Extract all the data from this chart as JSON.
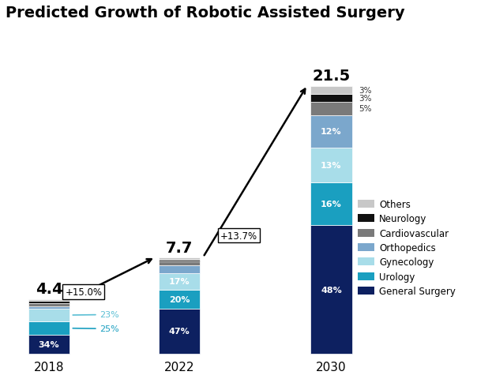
{
  "title": "Predicted Growth of Robotic Assisted Surgery",
  "years": [
    "2018",
    "2022",
    "2030"
  ],
  "totals": [
    4.4,
    7.7,
    21.5
  ],
  "bar_width": 0.38,
  "bar_positions": [
    1.0,
    2.2,
    3.6
  ],
  "segments": {
    "General Surgery": {
      "color": "#0d2060",
      "pcts": [
        34,
        47,
        48
      ]
    },
    "Urology": {
      "color": "#1a9fc0",
      "pcts": [
        25,
        20,
        16
      ]
    },
    "Gynecology": {
      "color": "#a8dde9",
      "pcts": [
        23,
        17,
        13
      ]
    },
    "Orthopedics": {
      "color": "#7ba7cc",
      "pcts": [
        5,
        8,
        12
      ]
    },
    "Cardiovascular": {
      "color": "#7a7a7a",
      "pcts": [
        5,
        4,
        5
      ]
    },
    "Neurology": {
      "color": "#111111",
      "pcts": [
        4,
        2,
        3
      ]
    },
    "Others": {
      "color": "#c8c8c8",
      "pcts": [
        4,
        2,
        3
      ]
    }
  },
  "segment_order": [
    "General Surgery",
    "Urology",
    "Gynecology",
    "Orthopedics",
    "Cardiovascular",
    "Neurology",
    "Others"
  ],
  "show_inside_labels": {
    "2018": [
      "General Surgery"
    ],
    "2022": [
      "General Surgery",
      "Urology",
      "Gynecology"
    ],
    "2030": [
      "General Surgery",
      "Urology",
      "Gynecology",
      "Orthopedics"
    ]
  },
  "inside_label_pcts": {
    "2018": {
      "General Surgery": "34%"
    },
    "2022": {
      "General Surgery": "47%",
      "Urology": "20%",
      "Gynecology": "17%"
    },
    "2030": {
      "General Surgery": "48%",
      "Urology": "16%",
      "Gynecology": "13%",
      "Orthopedics": "12%"
    }
  },
  "outside_labels_2030": [
    "Cardiovascular",
    "Neurology",
    "Others"
  ],
  "outside_texts_2030": [
    "5%",
    "3%",
    "3%"
  ],
  "outside_labels_2018": {
    "Gynecology": "23%",
    "Urology": "25%"
  },
  "background_color": "#ffffff",
  "legend_labels": [
    "Others",
    "Neurology",
    "Cardiovascular",
    "Orthopedics",
    "Gynecology",
    "Urology",
    "General Surgery"
  ],
  "legend_colors": [
    "#c8c8c8",
    "#111111",
    "#7a7a7a",
    "#7ba7cc",
    "#a8dde9",
    "#1a9fc0",
    "#0d2060"
  ],
  "title_fontsize": 14,
  "label_fontsize": 8,
  "total_fontsize": 14,
  "year_fontsize": 11
}
